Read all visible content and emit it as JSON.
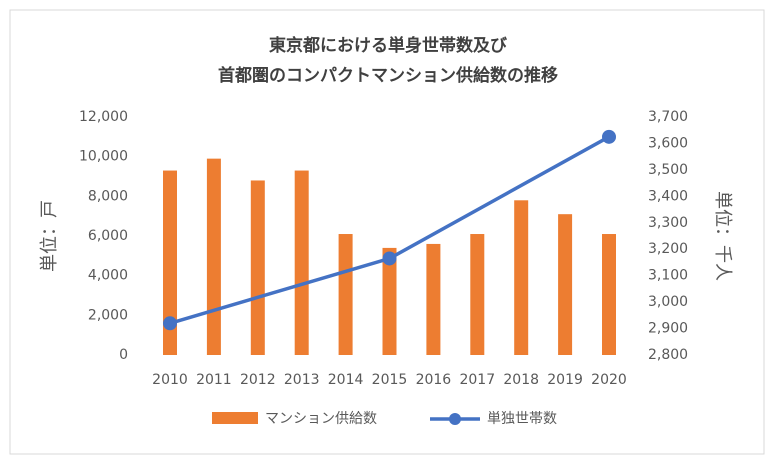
{
  "chart_data": {
    "type": "bar-line",
    "title": [
      "東京都における単身世帯数及び",
      "首都圏のコンパクトマンション供給数の推移"
    ],
    "y_label": "単位：戸",
    "y2_label": "単位：千人",
    "x": [
      2010,
      2011,
      2012,
      2013,
      2014,
      2015,
      2016,
      2017,
      2018,
      2019,
      2020
    ],
    "series": [
      {
        "name": "マンション供給数",
        "type": "bar",
        "color": "#ed7d31",
        "x": [
          2010,
          2011,
          2012,
          2013,
          2014,
          2015,
          2016,
          2017,
          2018,
          2019,
          2020
        ],
        "values": [
          9300,
          9900,
          8800,
          9300,
          6100,
          5400,
          5600,
          6100,
          7800,
          7100,
          6100
        ]
      },
      {
        "name": "単独世帯数",
        "type": "line",
        "color": "#4472c4",
        "axis": "y2",
        "x": [
          2010,
          2015,
          2020
        ],
        "values": [
          2920,
          3165,
          3625
        ]
      }
    ],
    "ylim": [
      0,
      12000
    ],
    "yticks": [
      0,
      {
        "value": 2000,
        "label": "2,000"
      },
      {
        "value": 4000,
        "label": "4,000"
      },
      {
        "value": 6000,
        "label": "6,000"
      },
      {
        "value": 8000,
        "label": "8,000"
      },
      {
        "value": 10000,
        "label": "10,000"
      },
      {
        "value": 12000,
        "label": "12,000"
      }
    ],
    "y2lim": [
      2800,
      3700
    ],
    "y2ticks": [
      {
        "value": 2800,
        "label": "2,800"
      },
      {
        "value": 2900,
        "label": "2,900"
      },
      {
        "value": 3000,
        "label": "3,000"
      },
      {
        "value": 3100,
        "label": "3,100"
      },
      {
        "value": 3200,
        "label": "3,200"
      },
      {
        "value": 3300,
        "label": "3,300"
      },
      {
        "value": 3400,
        "label": "3,400"
      },
      {
        "value": 3500,
        "label": "3,500"
      },
      {
        "value": 3600,
        "label": "3,600"
      },
      {
        "value": 3700,
        "label": "3,700"
      }
    ],
    "legend": "bottom",
    "grid": false
  }
}
